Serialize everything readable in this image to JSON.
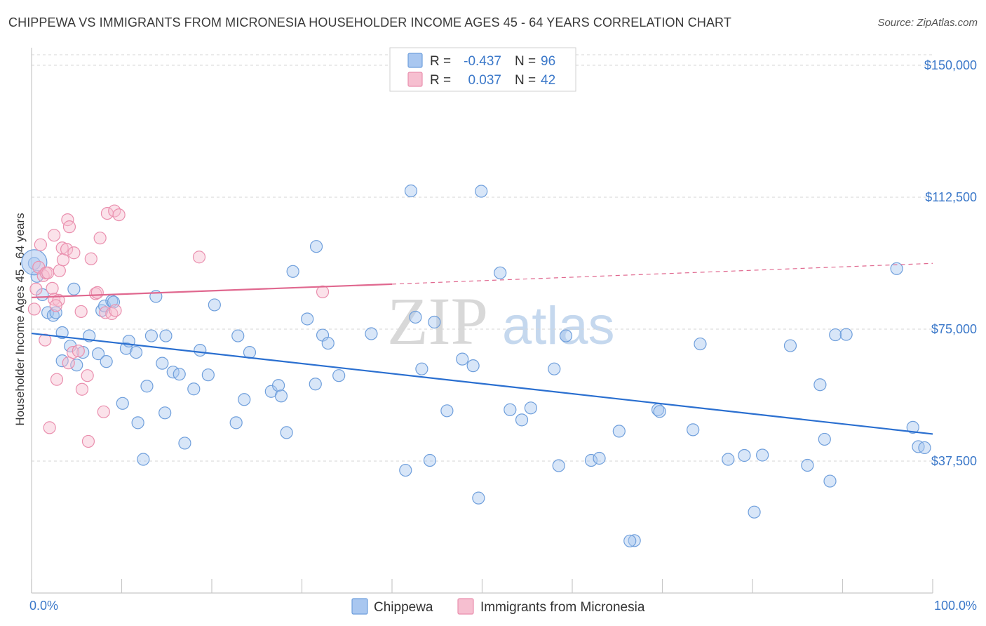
{
  "title": "CHIPPEWA VS IMMIGRANTS FROM MICRONESIA HOUSEHOLDER INCOME AGES 45 - 64 YEARS CORRELATION CHART",
  "source": "Source: ZipAtlas.com",
  "watermark": {
    "zip": "ZIP",
    "atlas": "atlas"
  },
  "legend": {
    "rows": [
      {
        "r_label": "R =",
        "r_value": "-0.437",
        "n_label": "N =",
        "n_value": "96"
      },
      {
        "r_label": "R =",
        "r_value": "0.037",
        "n_label": "N =",
        "n_value": "42"
      }
    ]
  },
  "colors": {
    "blue_fill": "#a9c7f0",
    "blue_stroke": "#6f9fdc",
    "blue_line": "#2a6fd0",
    "pink_fill": "#f6bfd0",
    "pink_stroke": "#ea8fae",
    "pink_line": "#e0688f",
    "tick_text": "#3b78c9",
    "grid": "#d6d6d6"
  },
  "chart_data": {
    "type": "scatter",
    "title": "CHIPPEWA VS IMMIGRANTS FROM MICRONESIA HOUSEHOLDER INCOME AGES 45 - 64 YEARS CORRELATION CHART",
    "xlabel": "",
    "ylabel": "Householder Income Ages 45 - 64 years",
    "xlim": [
      0,
      100
    ],
    "ylim": [
      0,
      153000
    ],
    "x_tick_labels": [
      "0.0%",
      "100.0%"
    ],
    "y_ticks": [
      37500,
      75000,
      112500,
      150000
    ],
    "y_tick_labels": [
      "$37,500",
      "$75,000",
      "$112,500",
      "$150,000"
    ],
    "series": [
      {
        "name": "Chippewa",
        "r": -0.437,
        "n": 96,
        "trend": {
          "x0": 0,
          "y0": 73800,
          "x1": 100,
          "y1": 45200
        },
        "points": [
          [
            0.3,
            93700
          ],
          [
            0.6,
            90000
          ],
          [
            1.2,
            84800
          ],
          [
            1.8,
            79700
          ],
          [
            2.4,
            78900
          ],
          [
            2.7,
            79700
          ],
          [
            3.4,
            74000
          ],
          [
            3.4,
            66000
          ],
          [
            4.3,
            70200
          ],
          [
            4.7,
            86400
          ],
          [
            5.0,
            64800
          ],
          [
            5.7,
            68400
          ],
          [
            6.4,
            73100
          ],
          [
            7.4,
            68000
          ],
          [
            7.8,
            80300
          ],
          [
            8.1,
            81600
          ],
          [
            8.3,
            65800
          ],
          [
            8.9,
            83000
          ],
          [
            9.1,
            82700
          ],
          [
            10.1,
            53900
          ],
          [
            10.5,
            69500
          ],
          [
            10.8,
            71600
          ],
          [
            11.6,
            68400
          ],
          [
            11.8,
            48400
          ],
          [
            12.4,
            38000
          ],
          [
            12.8,
            58800
          ],
          [
            13.3,
            73100
          ],
          [
            13.8,
            84300
          ],
          [
            14.5,
            65300
          ],
          [
            14.8,
            51200
          ],
          [
            14.9,
            73100
          ],
          [
            15.7,
            62800
          ],
          [
            16.4,
            62200
          ],
          [
            17.0,
            42600
          ],
          [
            18.0,
            58000
          ],
          [
            18.7,
            69000
          ],
          [
            19.6,
            62000
          ],
          [
            20.3,
            81900
          ],
          [
            22.7,
            48400
          ],
          [
            22.9,
            73100
          ],
          [
            23.6,
            55000
          ],
          [
            24.2,
            68400
          ],
          [
            26.6,
            57300
          ],
          [
            27.4,
            59000
          ],
          [
            27.7,
            56000
          ],
          [
            28.3,
            45600
          ],
          [
            29.0,
            91400
          ],
          [
            30.6,
            77900
          ],
          [
            31.5,
            59400
          ],
          [
            31.6,
            98500
          ],
          [
            32.3,
            73300
          ],
          [
            32.9,
            71000
          ],
          [
            34.1,
            61800
          ],
          [
            37.7,
            73700
          ],
          [
            41.5,
            34900
          ],
          [
            42.1,
            114300
          ],
          [
            42.6,
            78400
          ],
          [
            43.3,
            63700
          ],
          [
            44.2,
            37700
          ],
          [
            44.7,
            77000
          ],
          [
            46.1,
            51800
          ],
          [
            47.8,
            66500
          ],
          [
            49.0,
            64600
          ],
          [
            49.6,
            27000
          ],
          [
            49.9,
            114200
          ],
          [
            52.0,
            91000
          ],
          [
            53.1,
            52100
          ],
          [
            54.4,
            49200
          ],
          [
            55.4,
            52600
          ],
          [
            58.0,
            63700
          ],
          [
            59.3,
            73100
          ],
          [
            62.1,
            37700
          ],
          [
            63.0,
            38300
          ],
          [
            65.2,
            46000
          ],
          [
            69.5,
            52100
          ],
          [
            69.7,
            51600
          ],
          [
            73.4,
            46400
          ],
          [
            74.2,
            70800
          ],
          [
            77.3,
            38000
          ],
          [
            79.1,
            39100
          ],
          [
            80.2,
            23000
          ],
          [
            81.1,
            39200
          ],
          [
            84.2,
            70300
          ],
          [
            86.1,
            36300
          ],
          [
            87.5,
            59200
          ],
          [
            88.0,
            43700
          ],
          [
            88.6,
            31800
          ],
          [
            89.2,
            73400
          ],
          [
            90.4,
            73500
          ],
          [
            96.0,
            92200
          ],
          [
            97.8,
            47100
          ],
          [
            98.4,
            41600
          ],
          [
            99.1,
            41300
          ],
          [
            66.9,
            14900
          ],
          [
            66.4,
            14800
          ],
          [
            58.5,
            36200
          ]
        ]
      },
      {
        "name": "Immigrants from Micronesia",
        "r": 0.037,
        "n": 42,
        "trend": {
          "x0": 0,
          "y0": 84000,
          "x1": 40,
          "y1": 87800
        },
        "trend_dashed": {
          "x0": 40,
          "y0": 87800,
          "x1": 100,
          "y1": 93700
        },
        "points": [
          [
            0.3,
            80700
          ],
          [
            0.5,
            86400
          ],
          [
            0.8,
            92600
          ],
          [
            1.0,
            99000
          ],
          [
            1.3,
            90200
          ],
          [
            1.5,
            71900
          ],
          [
            1.6,
            91000
          ],
          [
            1.8,
            91000
          ],
          [
            2.0,
            47000
          ],
          [
            2.3,
            86600
          ],
          [
            2.5,
            83500
          ],
          [
            2.5,
            101700
          ],
          [
            2.8,
            60700
          ],
          [
            3.0,
            83200
          ],
          [
            3.1,
            91600
          ],
          [
            3.4,
            98100
          ],
          [
            3.5,
            94700
          ],
          [
            3.9,
            97700
          ],
          [
            4.0,
            106100
          ],
          [
            4.2,
            104100
          ],
          [
            4.1,
            65400
          ],
          [
            4.6,
            68400
          ],
          [
            5.2,
            68800
          ],
          [
            5.5,
            80000
          ],
          [
            5.6,
            57900
          ],
          [
            6.2,
            61800
          ],
          [
            6.3,
            43100
          ],
          [
            6.6,
            95000
          ],
          [
            7.1,
            85100
          ],
          [
            7.3,
            85400
          ],
          [
            7.6,
            100900
          ],
          [
            8.0,
            51500
          ],
          [
            8.2,
            79700
          ],
          [
            8.4,
            107900
          ],
          [
            8.9,
            79400
          ],
          [
            9.2,
            108600
          ],
          [
            9.7,
            107500
          ],
          [
            18.6,
            95500
          ],
          [
            32.3,
            85600
          ],
          [
            9.3,
            80300
          ],
          [
            2.7,
            81700
          ],
          [
            4.7,
            96700
          ]
        ]
      }
    ]
  },
  "bottom_legend": {
    "items": [
      "Chippewa",
      "Immigrants from Micronesia"
    ]
  }
}
